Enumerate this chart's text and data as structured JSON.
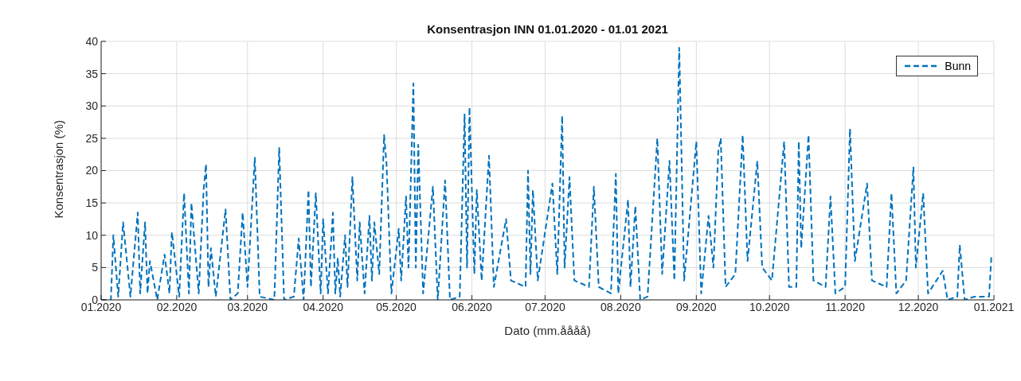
{
  "chart_data": {
    "type": "line",
    "title": "Konsentrasjon INN 01.01.2020 - 01.01 2021",
    "xlabel": "Dato (mm.åååå)",
    "ylabel": "Konsentrasjon (%)",
    "x": [
      "2020-01-01",
      "2020-01-05",
      "2020-01-06",
      "2020-01-08",
      "2020-01-10",
      "2020-01-13",
      "2020-01-16",
      "2020-01-17",
      "2020-01-19",
      "2020-01-20",
      "2020-01-21",
      "2020-01-24",
      "2020-01-27",
      "2020-01-29",
      "2020-01-30",
      "2020-02-02",
      "2020-02-04",
      "2020-02-06",
      "2020-02-07",
      "2020-02-10",
      "2020-02-12",
      "2020-02-13",
      "2020-02-14",
      "2020-02-15",
      "2020-02-17",
      "2020-02-21",
      "2020-02-23",
      "2020-02-26",
      "2020-02-28",
      "2020-03-01",
      "2020-03-04",
      "2020-03-06",
      "2020-03-12",
      "2020-03-14",
      "2020-03-16",
      "2020-03-20",
      "2020-03-22",
      "2020-03-24",
      "2020-03-26",
      "2020-03-27",
      "2020-03-29",
      "2020-03-31",
      "2020-04-01",
      "2020-04-03",
      "2020-04-05",
      "2020-04-06",
      "2020-04-07",
      "2020-04-08",
      "2020-04-10",
      "2020-04-11",
      "2020-04-13",
      "2020-04-15",
      "2020-04-16",
      "2020-04-18",
      "2020-04-20",
      "2020-04-21",
      "2020-04-22",
      "2020-04-24",
      "2020-04-26",
      "2020-04-27",
      "2020-04-29",
      "2020-05-02",
      "2020-05-03",
      "2020-05-05",
      "2020-05-06",
      "2020-05-08",
      "2020-05-09",
      "2020-05-10",
      "2020-05-12",
      "2020-05-16",
      "2020-05-18",
      "2020-05-21",
      "2020-05-23",
      "2020-05-27",
      "2020-05-29",
      "2020-05-30",
      "2020-05-31",
      "2020-06-02",
      "2020-06-03",
      "2020-06-05",
      "2020-06-08",
      "2020-06-10",
      "2020-06-15",
      "2020-06-17",
      "2020-06-23",
      "2020-06-24",
      "2020-06-25",
      "2020-06-26",
      "2020-06-28",
      "2020-07-04",
      "2020-07-06",
      "2020-07-08",
      "2020-07-09",
      "2020-07-11",
      "2020-07-13",
      "2020-07-19",
      "2020-07-21",
      "2020-07-23",
      "2020-07-28",
      "2020-07-30",
      "2020-07-31",
      "2020-08-04",
      "2020-08-05",
      "2020-08-07",
      "2020-08-09",
      "2020-08-12",
      "2020-08-16",
      "2020-08-18",
      "2020-08-21",
      "2020-08-23",
      "2020-08-25",
      "2020-08-27",
      "2020-09-01",
      "2020-09-03",
      "2020-09-06",
      "2020-09-08",
      "2020-09-10",
      "2020-09-11",
      "2020-09-13",
      "2020-09-17",
      "2020-09-20",
      "2020-09-22",
      "2020-09-26",
      "2020-09-28",
      "2020-10-02",
      "2020-10-07",
      "2020-10-09",
      "2020-10-12",
      "2020-10-13",
      "2020-10-14",
      "2020-10-17",
      "2020-10-19",
      "2020-10-24",
      "2020-10-26",
      "2020-10-28",
      "2020-11-01",
      "2020-11-03",
      "2020-11-05",
      "2020-11-10",
      "2020-11-12",
      "2020-11-18",
      "2020-11-20",
      "2020-11-22",
      "2020-11-26",
      "2020-11-29",
      "2020-11-30",
      "2020-12-03",
      "2020-12-05",
      "2020-12-11",
      "2020-12-13",
      "2020-12-17",
      "2020-12-18",
      "2020-12-20",
      "2020-12-24",
      "2020-12-30",
      "2020-12-31"
    ],
    "series": [
      {
        "name": "Bunn",
        "color": "#0072bd",
        "values": [
          0,
          0,
          10,
          0.5,
          12,
          0.5,
          13.5,
          1,
          12,
          1,
          6,
          0,
          7,
          1,
          10.5,
          0.5,
          16.5,
          1,
          15,
          1,
          17,
          21,
          2,
          8,
          0.5,
          14,
          0,
          1,
          13.5,
          2,
          22,
          0.5,
          0,
          23.5,
          0,
          0.5,
          9.5,
          0,
          17,
          2,
          16.5,
          1,
          12.5,
          1,
          13.5,
          1,
          6.5,
          0.5,
          10,
          2,
          19,
          3,
          12,
          1,
          13,
          3,
          12,
          4,
          25.5,
          21,
          1,
          11,
          3,
          16,
          5,
          33.5,
          5,
          24,
          1,
          17.5,
          0,
          18.5,
          0,
          0.5,
          28.8,
          5,
          29.8,
          4,
          17,
          3,
          22.3,
          2,
          12.5,
          3,
          2,
          20,
          4,
          17,
          3,
          18,
          4,
          28.5,
          5,
          19,
          3,
          2,
          17.5,
          2,
          1,
          19.5,
          1,
          15.5,
          2,
          14.5,
          0,
          0.5,
          25,
          4,
          21.5,
          3,
          39,
          3,
          24.5,
          1,
          13,
          5,
          23,
          25,
          2,
          4,
          25.5,
          6,
          21.5,
          5,
          3,
          24.5,
          2,
          2,
          24.5,
          8,
          25.5,
          3,
          2,
          16,
          1,
          2,
          26.5,
          6,
          18,
          3,
          2,
          16.5,
          1,
          3,
          20.5,
          5,
          16.5,
          1,
          4.5,
          0,
          0.5,
          8.5,
          0,
          0.5,
          0.5,
          7
        ]
      }
    ],
    "xlim": [
      "2020-01-01",
      "2021-01-01"
    ],
    "xticks": [
      {
        "value": "2020-01-01",
        "label": "01.2020"
      },
      {
        "value": "2020-02-01",
        "label": "02.2020"
      },
      {
        "value": "2020-03-01",
        "label": "03.2020"
      },
      {
        "value": "2020-04-01",
        "label": "04.2020"
      },
      {
        "value": "2020-05-01",
        "label": "05.2020"
      },
      {
        "value": "2020-06-01",
        "label": "06.2020"
      },
      {
        "value": "2020-07-01",
        "label": "07.2020"
      },
      {
        "value": "2020-08-01",
        "label": "08.2020"
      },
      {
        "value": "2020-09-01",
        "label": "09.2020"
      },
      {
        "value": "2020-10-01",
        "label": "10.2020"
      },
      {
        "value": "2020-11-01",
        "label": "11.2020"
      },
      {
        "value": "2020-12-01",
        "label": "12.2020"
      },
      {
        "value": "2021-01-01",
        "label": "01.2021"
      }
    ],
    "ylim": [
      0,
      40
    ],
    "yticks": [
      0,
      5,
      10,
      15,
      20,
      25,
      30,
      35,
      40
    ],
    "grid": true,
    "legend": "top right",
    "marker": "none",
    "line_style": "dashed"
  }
}
